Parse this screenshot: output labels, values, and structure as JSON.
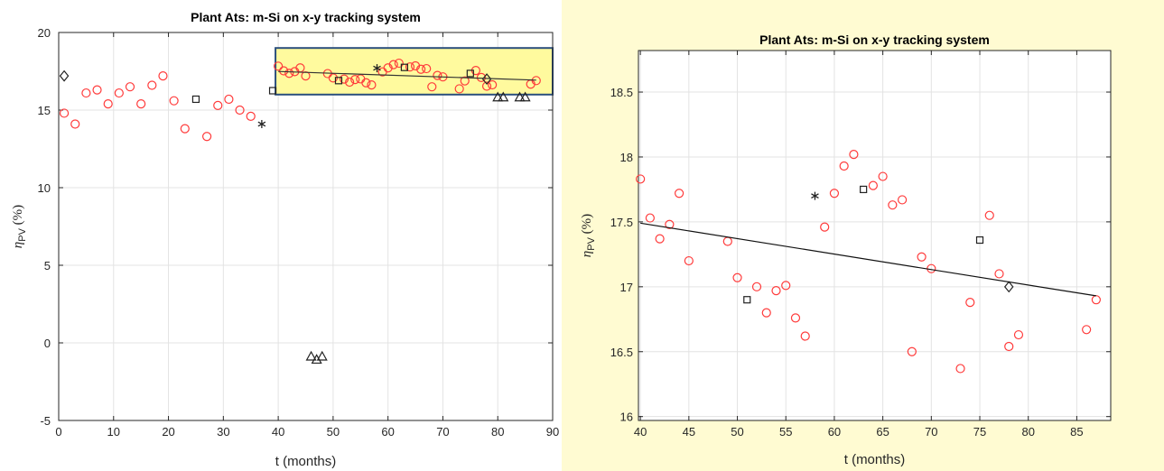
{
  "chart_data": [
    {
      "type": "scatter",
      "title": "Plant Ats: m-Si on x-y tracking system",
      "xlabel": "t (months)",
      "ylabel": "η",
      "ylabel_sub": "PV",
      "ylabel_unit": "(%)",
      "xlim": [
        0,
        90
      ],
      "ylim": [
        -5,
        20
      ],
      "xticks": [
        0,
        10,
        20,
        30,
        40,
        50,
        60,
        70,
        80,
        90
      ],
      "yticks": [
        -5,
        0,
        5,
        10,
        15,
        20
      ],
      "grid": true,
      "highlight_box": {
        "x_range": [
          39.5,
          90
        ],
        "y_range": [
          16.0,
          19.0
        ],
        "fill": "#fffa9e",
        "border": "#2b4f7c"
      },
      "series": [
        {
          "marker": "circle",
          "color": "#ff3b3b",
          "x": [
            1,
            3,
            5,
            7,
            9,
            11,
            13,
            15,
            17,
            19,
            21,
            23,
            27,
            29,
            31,
            33,
            35,
            40,
            41,
            42,
            43,
            44,
            45,
            49,
            50,
            52,
            53,
            54,
            55,
            56,
            57,
            59,
            60,
            61,
            62,
            64,
            65,
            66,
            67,
            68,
            69,
            70,
            73,
            74,
            76,
            77,
            78,
            79,
            86,
            87
          ],
          "y": [
            14.8,
            14.1,
            16.1,
            16.3,
            15.4,
            16.1,
            16.5,
            15.4,
            16.6,
            17.2,
            15.6,
            13.8,
            13.3,
            15.3,
            15.7,
            15.0,
            14.6,
            17.83,
            17.53,
            17.37,
            17.48,
            17.72,
            17.2,
            17.35,
            17.07,
            17.0,
            16.8,
            16.97,
            17.01,
            16.76,
            16.62,
            17.46,
            17.72,
            17.93,
            18.02,
            17.78,
            17.85,
            17.63,
            17.67,
            16.5,
            17.23,
            17.14,
            16.37,
            16.88,
            17.55,
            17.1,
            16.54,
            16.63,
            16.67,
            16.9
          ]
        },
        {
          "marker": "square",
          "color": "#222222",
          "x": [
            25,
            39,
            51,
            63,
            75
          ],
          "y": [
            15.7,
            16.25,
            16.9,
            17.75,
            17.36
          ]
        },
        {
          "marker": "diamond",
          "color": "#222222",
          "x": [
            1,
            78
          ],
          "y": [
            17.2,
            17.0
          ]
        },
        {
          "marker": "asterisk",
          "color": "#222222",
          "x": [
            37,
            58
          ],
          "y": [
            14.1,
            17.7
          ]
        },
        {
          "marker": "triangle",
          "color": "#222222",
          "x": [
            46,
            47,
            48,
            80,
            81,
            84,
            85
          ],
          "y": [
            -0.9,
            -1.1,
            -0.9,
            15.8,
            15.8,
            15.8,
            15.8
          ]
        }
      ],
      "trendline": {
        "x": [
          40,
          87
        ],
        "y": [
          17.49,
          16.93
        ],
        "color": "#333333"
      }
    },
    {
      "type": "scatter",
      "title": "Plant Ats: m-Si on x-y tracking system",
      "xlabel": "t (months)",
      "ylabel": "η",
      "ylabel_sub": "PV",
      "ylabel_unit": "(%)",
      "xlim": [
        39.8,
        88.5
      ],
      "ylim": [
        15.97,
        18.82
      ],
      "xticks": [
        40,
        45,
        50,
        55,
        60,
        65,
        70,
        75,
        80,
        85
      ],
      "yticks": [
        16,
        16.5,
        17,
        17.5,
        18,
        18.5
      ],
      "ytick_labels": [
        "16",
        "16.5",
        "17",
        "17.5",
        "18",
        "18.5"
      ],
      "grid": true,
      "panel_background": "#fffbd2",
      "series": [
        {
          "marker": "circle",
          "color": "#ff3b3b",
          "x": [
            40,
            41,
            42,
            43,
            44,
            45,
            49,
            50,
            52,
            53,
            54,
            55,
            56,
            57,
            59,
            60,
            61,
            62,
            64,
            65,
            66,
            67,
            68,
            69,
            70,
            73,
            74,
            76,
            77,
            78,
            79,
            86,
            87
          ],
          "y": [
            17.83,
            17.53,
            17.37,
            17.48,
            17.72,
            17.2,
            17.35,
            17.07,
            17.0,
            16.8,
            16.97,
            17.01,
            16.76,
            16.62,
            17.46,
            17.72,
            17.93,
            18.02,
            17.78,
            17.85,
            17.63,
            17.67,
            16.5,
            17.23,
            17.14,
            16.37,
            16.88,
            17.55,
            17.1,
            16.54,
            16.63,
            16.67,
            16.9
          ]
        },
        {
          "marker": "square",
          "color": "#222222",
          "x": [
            51,
            63,
            75
          ],
          "y": [
            16.9,
            17.75,
            17.36
          ]
        },
        {
          "marker": "diamond",
          "color": "#222222",
          "x": [
            78
          ],
          "y": [
            17.0
          ]
        },
        {
          "marker": "asterisk",
          "color": "#222222",
          "x": [
            58
          ],
          "y": [
            17.7
          ]
        }
      ],
      "trendline": {
        "x": [
          40,
          87
        ],
        "y": [
          17.49,
          16.93
        ],
        "color": "#111111"
      }
    }
  ]
}
